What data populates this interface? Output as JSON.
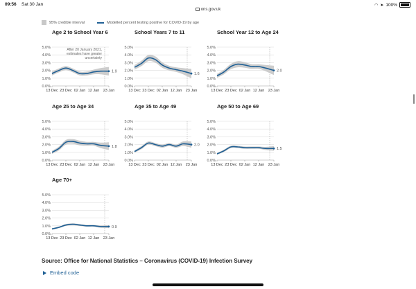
{
  "status": {
    "time": "09:56",
    "date": "Sat 30 Jan",
    "url": "ons.gov.uk",
    "battery": "100%"
  },
  "legend": {
    "interval_label": "95% credible interval",
    "line_label": "Modelled percent testing positive for COVID-19 by age"
  },
  "colors": {
    "line": "#206095",
    "band": "#c8c8c8",
    "grid": "#dddddd",
    "cutoff": "#aaaaaa"
  },
  "chart_data": [
    {
      "type": "line",
      "title": "Age 2 to School Year 6",
      "x": [
        "2020-12-13",
        "2020-12-18",
        "2020-12-23",
        "2020-12-28",
        "2021-01-02",
        "2021-01-07",
        "2021-01-12",
        "2021-01-17",
        "2021-01-23"
      ],
      "y": [
        1.6,
        2.0,
        2.3,
        2.0,
        1.6,
        1.6,
        1.8,
        1.9,
        1.9
      ],
      "band_width": [
        0.25,
        0.25,
        0.25,
        0.25,
        0.25,
        0.25,
        0.3,
        0.4,
        0.55
      ],
      "end_label": "1.9",
      "xtick_labels": [
        "13 Dec",
        "23 Dec",
        "02 Jan",
        "12 Jan",
        "23 Jan"
      ],
      "ytick_labels": [
        "0.0%",
        "1.0%",
        "2.0%",
        "3.0%",
        "4.0%",
        "5.0%"
      ],
      "ylim": [
        0,
        5
      ],
      "annotation": "After 20 January 2021, estimates have greater uncertainty"
    },
    {
      "type": "line",
      "title": "School Years 7 to 11",
      "x": [
        "2020-12-13",
        "2020-12-18",
        "2020-12-23",
        "2020-12-28",
        "2021-01-02",
        "2021-01-07",
        "2021-01-12",
        "2021-01-17",
        "2021-01-23"
      ],
      "y": [
        2.4,
        2.9,
        3.6,
        3.4,
        2.7,
        2.3,
        2.1,
        1.9,
        1.6
      ],
      "band_width": [
        0.3,
        0.35,
        0.4,
        0.4,
        0.35,
        0.3,
        0.3,
        0.4,
        0.6
      ],
      "end_label": "1.6",
      "xtick_labels": [
        "13 Dec",
        "23 Dec",
        "02 Jan",
        "12 Jan",
        "23 Jan"
      ],
      "ytick_labels": [
        "0.0%",
        "1.0%",
        "2.0%",
        "3.0%",
        "4.0%",
        "5.0%"
      ],
      "ylim": [
        0,
        5
      ]
    },
    {
      "type": "line",
      "title": "School Year 12 to Age 24",
      "x": [
        "2020-12-13",
        "2020-12-18",
        "2020-12-23",
        "2020-12-28",
        "2021-01-02",
        "2021-01-07",
        "2021-01-12",
        "2021-01-17",
        "2021-01-23"
      ],
      "y": [
        1.3,
        1.8,
        2.5,
        2.8,
        2.7,
        2.5,
        2.5,
        2.3,
        2.0
      ],
      "band_width": [
        0.25,
        0.3,
        0.35,
        0.4,
        0.35,
        0.3,
        0.3,
        0.4,
        0.6
      ],
      "end_label": "2.0",
      "xtick_labels": [
        "13 Dec",
        "23 Dec",
        "02 Jan",
        "12 Jan",
        "23 Jan"
      ],
      "ytick_labels": [
        "0.0%",
        "1.0%",
        "2.0%",
        "3.0%",
        "4.0%",
        "5.0%"
      ],
      "ylim": [
        0,
        5
      ]
    },
    {
      "type": "line",
      "title": "Age 25 to Age 34",
      "x": [
        "2020-12-13",
        "2020-12-18",
        "2020-12-23",
        "2020-12-28",
        "2021-01-02",
        "2021-01-07",
        "2021-01-12",
        "2021-01-17",
        "2021-01-23"
      ],
      "y": [
        1.0,
        1.5,
        2.3,
        2.4,
        2.2,
        2.1,
        2.1,
        1.9,
        1.8
      ],
      "band_width": [
        0.2,
        0.25,
        0.3,
        0.3,
        0.3,
        0.25,
        0.25,
        0.35,
        0.5
      ],
      "end_label": "1.8",
      "xtick_labels": [
        "13 Dec",
        "23 Dec",
        "02 Jan",
        "12 Jan",
        "23 Jan"
      ],
      "ytick_labels": [
        "0.0%",
        "1.0%",
        "2.0%",
        "3.0%",
        "4.0%",
        "5.0%"
      ],
      "ylim": [
        0,
        5
      ]
    },
    {
      "type": "line",
      "title": "Age 35 to Age 49",
      "x": [
        "2020-12-13",
        "2020-12-18",
        "2020-12-23",
        "2020-12-28",
        "2021-01-02",
        "2021-01-07",
        "2021-01-12",
        "2021-01-17",
        "2021-01-23"
      ],
      "y": [
        1.1,
        1.6,
        2.2,
        2.0,
        1.8,
        2.0,
        1.8,
        2.1,
        2.0
      ],
      "band_width": [
        0.15,
        0.2,
        0.2,
        0.2,
        0.2,
        0.2,
        0.2,
        0.3,
        0.4
      ],
      "end_label": "2.0",
      "xtick_labels": [
        "13 Dec",
        "23 Dec",
        "02 Jan",
        "12 Jan",
        "23 Jan"
      ],
      "ytick_labels": [
        "0.0%",
        "1.0%",
        "2.0%",
        "3.0%",
        "4.0%",
        "5.0%"
      ],
      "ylim": [
        0,
        5
      ]
    },
    {
      "type": "line",
      "title": "Age 50 to Age 69",
      "x": [
        "2020-12-13",
        "2020-12-18",
        "2020-12-23",
        "2020-12-28",
        "2021-01-02",
        "2021-01-07",
        "2021-01-12",
        "2021-01-17",
        "2021-01-23"
      ],
      "y": [
        0.8,
        1.2,
        1.7,
        1.7,
        1.6,
        1.6,
        1.6,
        1.5,
        1.5
      ],
      "band_width": [
        0.1,
        0.15,
        0.15,
        0.15,
        0.15,
        0.15,
        0.15,
        0.2,
        0.3
      ],
      "end_label": "1.5",
      "xtick_labels": [
        "13 Dec",
        "23 Dec",
        "02 Jan",
        "12 Jan",
        "23 Jan"
      ],
      "ytick_labels": [
        "0.0%",
        "1.0%",
        "2.0%",
        "3.0%",
        "4.0%",
        "5.0%"
      ],
      "ylim": [
        0,
        5
      ]
    },
    {
      "type": "line",
      "title": "Age 70+",
      "x": [
        "2020-12-13",
        "2020-12-18",
        "2020-12-23",
        "2020-12-28",
        "2021-01-02",
        "2021-01-07",
        "2021-01-12",
        "2021-01-17",
        "2021-01-23"
      ],
      "y": [
        0.6,
        0.8,
        1.1,
        1.2,
        1.1,
        1.0,
        1.0,
        0.9,
        0.9
      ],
      "band_width": [
        0.1,
        0.1,
        0.12,
        0.12,
        0.12,
        0.12,
        0.12,
        0.15,
        0.2
      ],
      "end_label": "0.9",
      "xtick_labels": [
        "13 Dec",
        "23 Dec",
        "02 Jan",
        "12 Jan",
        "23 Jan"
      ],
      "ytick_labels": [
        "0.0%",
        "1.0%",
        "2.0%",
        "3.0%",
        "4.0%",
        "5.0%"
      ],
      "ylim": [
        0,
        5
      ]
    }
  ],
  "footer": {
    "source": "Source: Office for National Statistics – Coronavirus (COVID-19) Infection Survey",
    "embed": "Embed code"
  }
}
